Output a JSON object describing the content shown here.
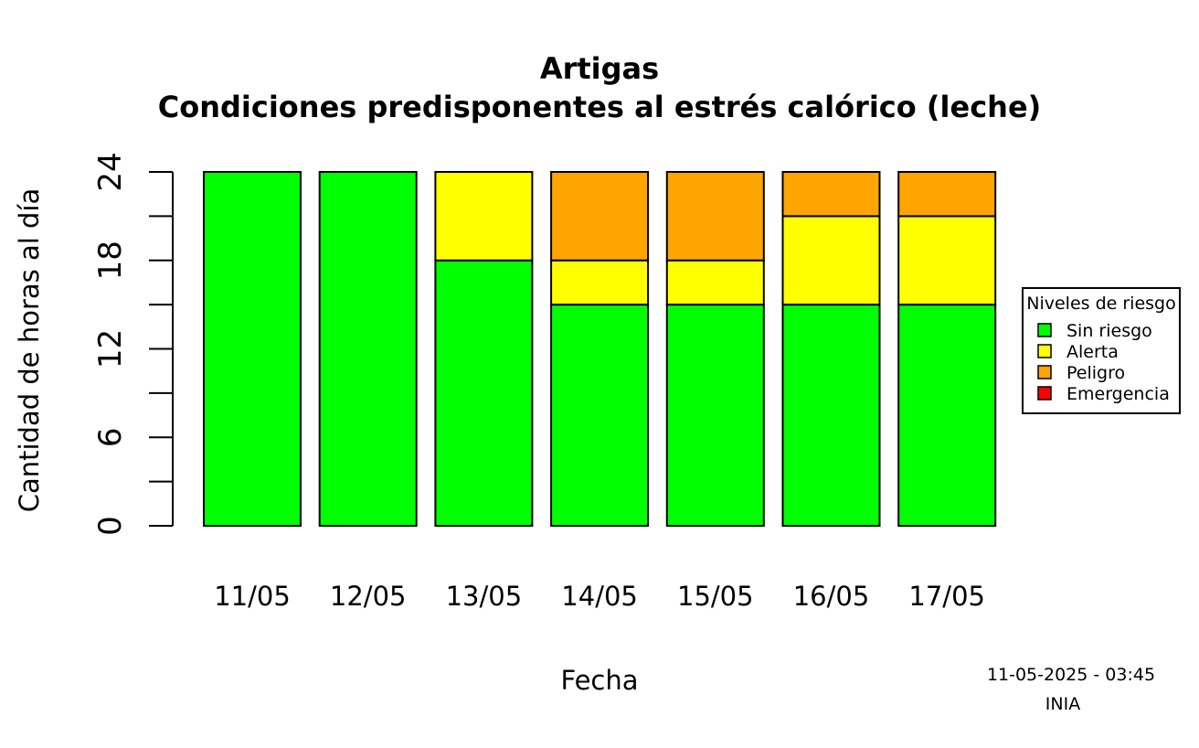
{
  "chart_data": {
    "type": "bar",
    "stacked": true,
    "title": "Artigas",
    "subtitle": "Condiciones predisponentes al estrés calórico (leche)",
    "xlabel": "Fecha",
    "ylabel": "Cantidad de horas al día",
    "ylim": [
      0,
      24
    ],
    "yticks": [
      0,
      6,
      12,
      18,
      24
    ],
    "yticks_minor": [
      3,
      9,
      15,
      21
    ],
    "grid": false,
    "categories": [
      "11/05",
      "12/05",
      "13/05",
      "14/05",
      "15/05",
      "16/05",
      "17/05"
    ],
    "series": [
      {
        "name": "Sin riesgo",
        "color": "#00ff00",
        "values": [
          24,
          24,
          18,
          15,
          15,
          15,
          15
        ]
      },
      {
        "name": "Alerta",
        "color": "#ffff00",
        "values": [
          0,
          0,
          6,
          3,
          3,
          6,
          6
        ]
      },
      {
        "name": "Peligro",
        "color": "#ffa500",
        "values": [
          0,
          0,
          0,
          6,
          6,
          3,
          3
        ]
      },
      {
        "name": "Emergencia",
        "color": "#ff0000",
        "values": [
          0,
          0,
          0,
          0,
          0,
          0,
          0
        ]
      }
    ],
    "legend": {
      "title": "Niveles de riesgo",
      "placement": "right"
    },
    "footer": {
      "timestamp": "11-05-2025 - 03:45",
      "source": "INIA"
    }
  }
}
